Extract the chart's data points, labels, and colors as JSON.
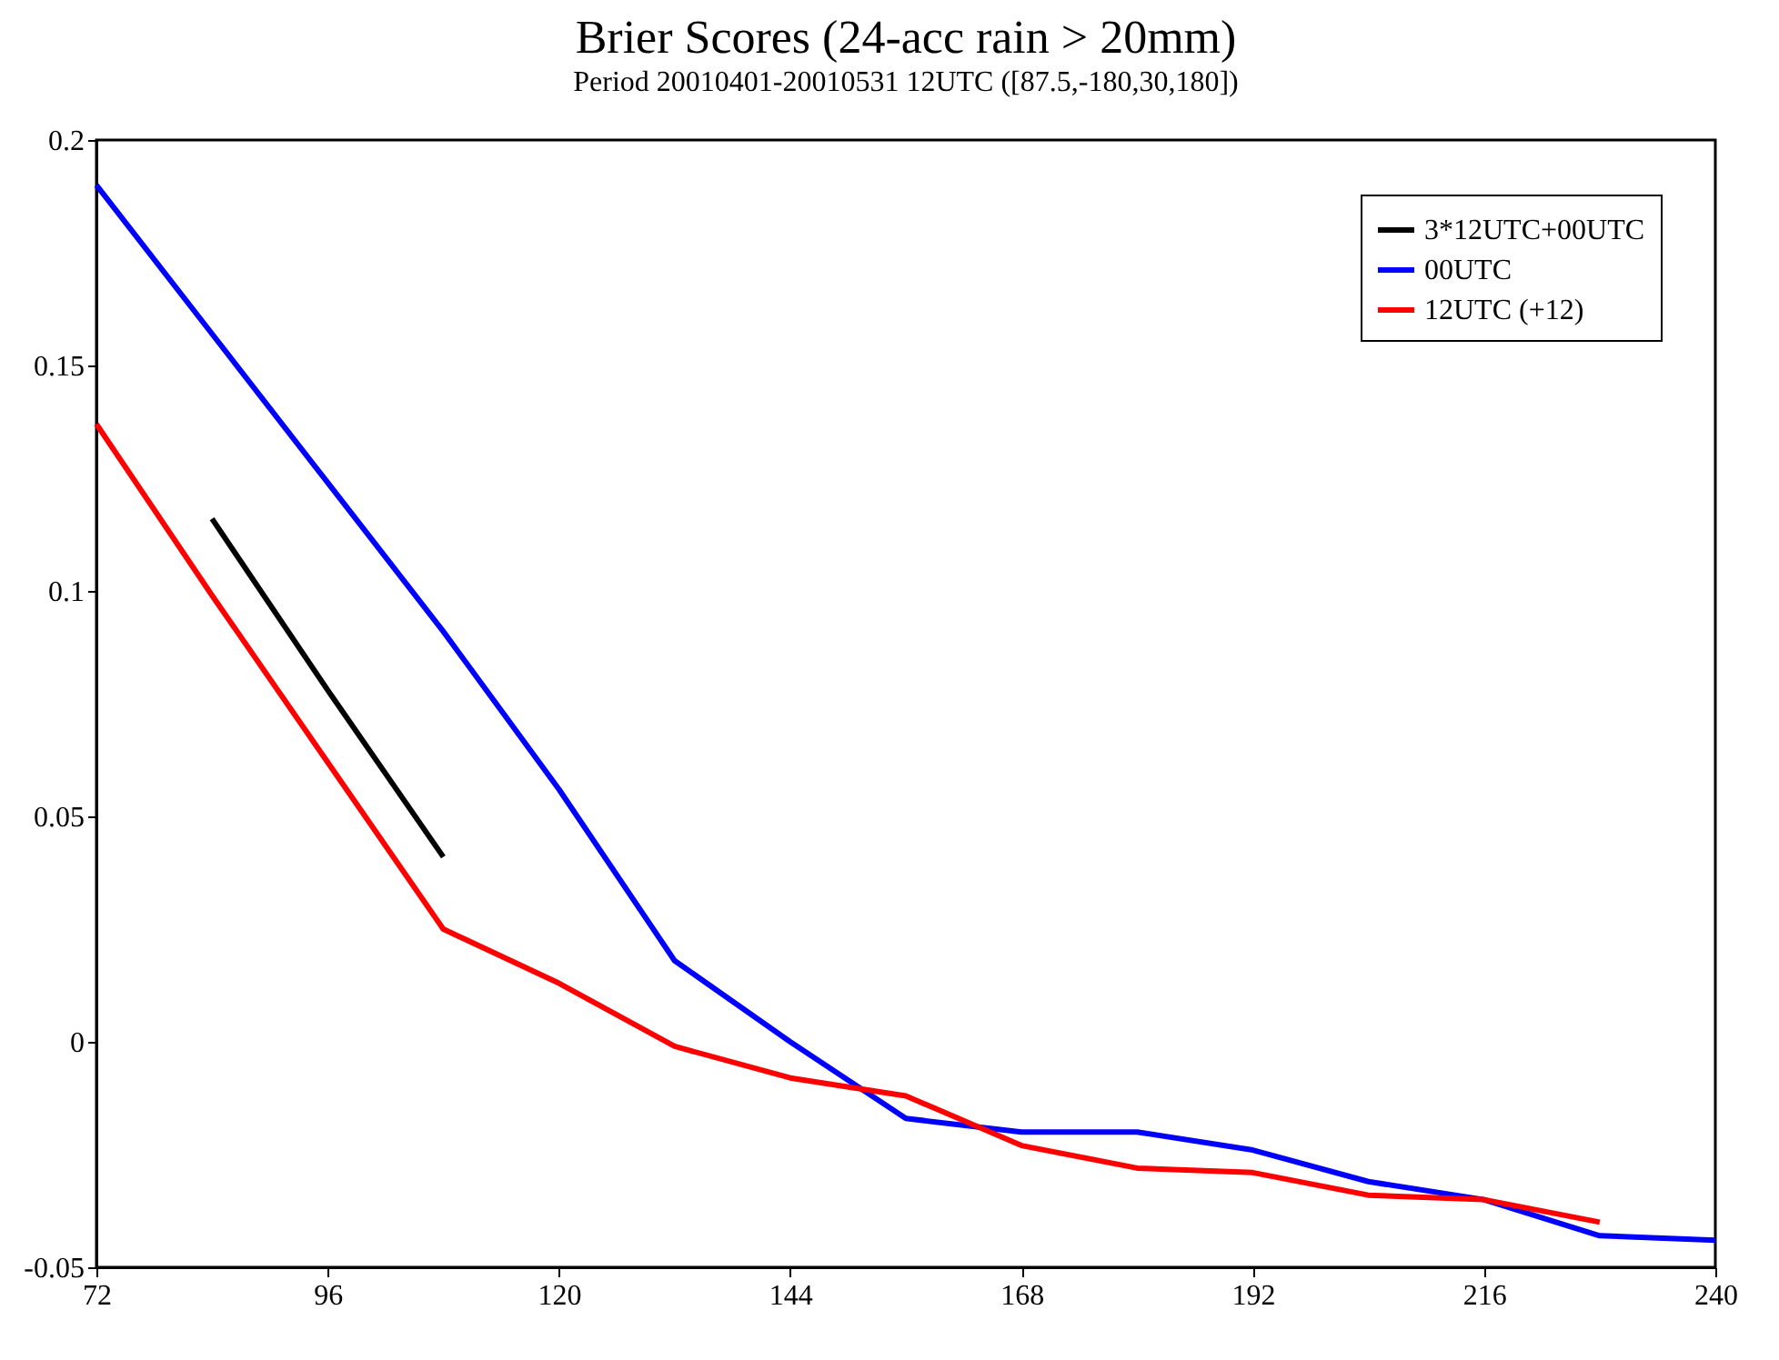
{
  "chart_data": {
    "type": "line",
    "title": "Brier Scores (24-acc rain > 20mm)",
    "subtitle": "Period 20010401-20010531 12UTC ([87.5,-180,30,180])",
    "x": [
      72,
      84,
      96,
      108,
      120,
      132,
      144,
      156,
      168,
      180,
      192,
      204,
      216,
      228,
      240
    ],
    "series": [
      {
        "name": "3*12UTC+00UTC",
        "color": "#000000",
        "x": [
          84,
          96,
          108
        ],
        "values": [
          0.116,
          0.078,
          0.041
        ]
      },
      {
        "name": "00UTC",
        "color": "#0000ff",
        "values": [
          0.19,
          0.157,
          0.124,
          0.091,
          0.056,
          0.018,
          0.0,
          -0.017,
          -0.02,
          -0.02,
          -0.024,
          -0.031,
          -0.035,
          -0.043,
          -0.044
        ]
      },
      {
        "name": "12UTC (+12)",
        "color": "#ff0000",
        "x": [
          72,
          84,
          96,
          108,
          120,
          132,
          144,
          156,
          168,
          180,
          192,
          204,
          216,
          228
        ],
        "values": [
          0.137,
          0.099,
          0.062,
          0.025,
          0.013,
          -0.001,
          -0.008,
          -0.012,
          -0.023,
          -0.028,
          -0.029,
          -0.034,
          -0.035,
          -0.04
        ]
      }
    ],
    "xlim": [
      72,
      240
    ],
    "xticks": [
      72,
      96,
      120,
      144,
      168,
      192,
      216,
      240
    ],
    "ylim": [
      -0.05,
      0.2
    ],
    "yticks": [
      -0.05,
      0,
      0.05,
      0.1,
      0.15,
      0.2
    ],
    "legend": "top right",
    "grid": false,
    "line_style": "solid"
  }
}
